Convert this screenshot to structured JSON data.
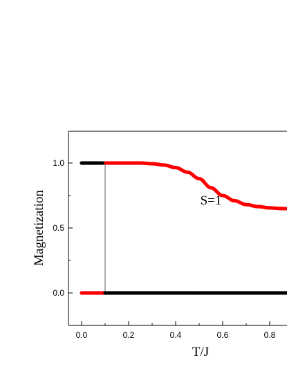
{
  "chart_data": {
    "type": "scatter",
    "xlabel": "T/J",
    "ylabel": "Magnetization",
    "xlim": [
      -0.04,
      0.95
    ],
    "ylim": [
      -0.25,
      1.25
    ],
    "x_ticks": [
      "0.0",
      "0.2",
      "0.4",
      "0.6",
      "0.8"
    ],
    "x_tick_values": [
      0.0,
      0.2,
      0.4,
      0.6,
      0.8
    ],
    "y_ticks": [
      "0.0",
      "0.5",
      "1.0"
    ],
    "y_tick_values": [
      0.0,
      0.5,
      1.0
    ],
    "annotation": "S=1",
    "annotation_at": [
      0.55,
      0.68
    ],
    "transition_line": {
      "x": 0.1,
      "y_range": [
        0.0,
        1.0
      ]
    },
    "series": [
      {
        "color": "#ff0000",
        "x": [
          0.1,
          0.15,
          0.2,
          0.25,
          0.3,
          0.35,
          0.4,
          0.45,
          0.5,
          0.55,
          0.6,
          0.65,
          0.7,
          0.75,
          0.8,
          0.85,
          0.95
        ],
        "y": [
          1.0,
          1.0,
          1.0,
          1.0,
          0.995,
          0.985,
          0.965,
          0.93,
          0.88,
          0.81,
          0.75,
          0.71,
          0.68,
          0.665,
          0.655,
          0.65,
          0.64
        ]
      },
      {
        "color": "#ff0000",
        "x": [
          0.0,
          0.1
        ],
        "y": [
          0.0,
          0.0
        ]
      },
      {
        "color": "#000000",
        "x": [
          0.0,
          0.09
        ],
        "y": [
          1.0,
          1.0
        ]
      },
      {
        "color": "#000000",
        "x": [
          0.1,
          0.95
        ],
        "y": [
          0.0,
          0.0
        ]
      }
    ]
  }
}
